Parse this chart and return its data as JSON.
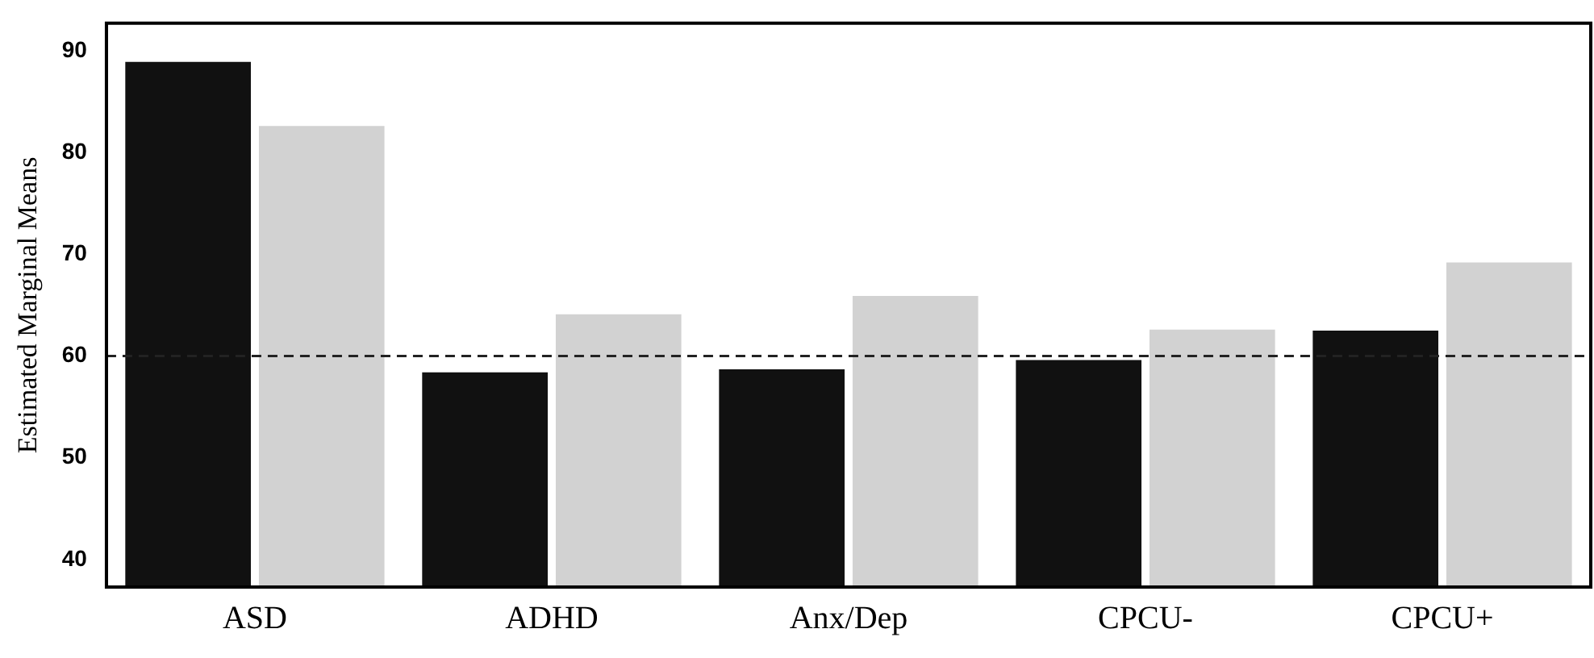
{
  "chart_data": {
    "type": "bar",
    "ylabel": "Estimated Marginal Means",
    "categories": [
      "ASD",
      "ADHD",
      "Anx/Dep",
      "CPCU-",
      "CPCU+"
    ],
    "series": [
      {
        "color": "#111111",
        "values": [
          88.9,
          58.4,
          58.7,
          59.6,
          62.5
        ]
      },
      {
        "color": "#d2d2d2",
        "values": [
          82.6,
          64.1,
          65.9,
          62.6,
          69.2
        ]
      }
    ],
    "ylim": [
      37.3,
      92.7
    ],
    "yticks": [
      40,
      50,
      60,
      70,
      80,
      90
    ],
    "ref_lines": [
      {
        "axis": "y",
        "value": 60,
        "color": "#222222",
        "line_style": "dashed"
      }
    ],
    "grid": false,
    "legend": false
  }
}
